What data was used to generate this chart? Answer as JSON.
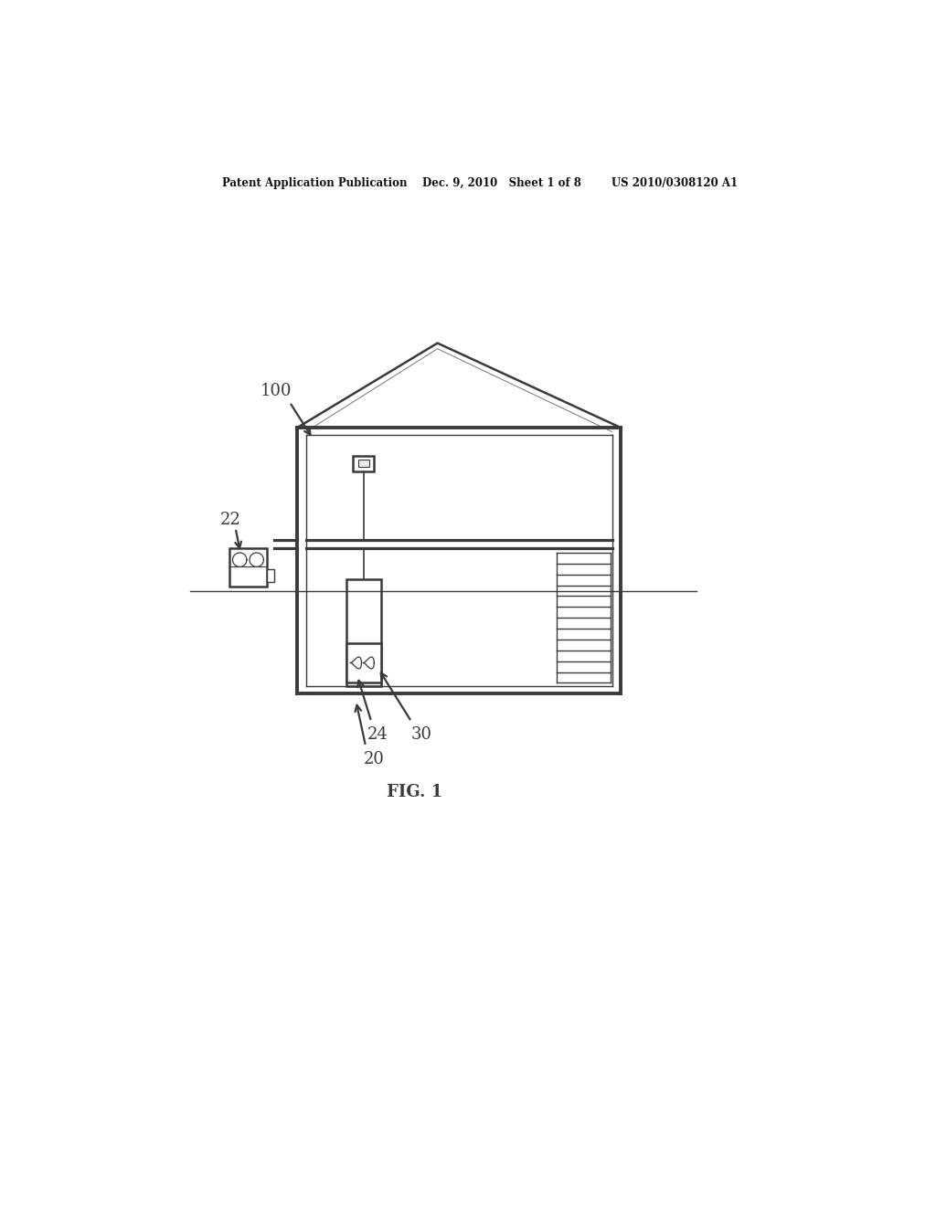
{
  "bg_color": "#ffffff",
  "line_color": "#3a3a3a",
  "header": "Patent Application Publication    Dec. 9, 2010   Sheet 1 of 8        US 2010/0308120 A1",
  "fig_label": "FIG. 1",
  "lw": 1.8,
  "tlw": 1.0
}
